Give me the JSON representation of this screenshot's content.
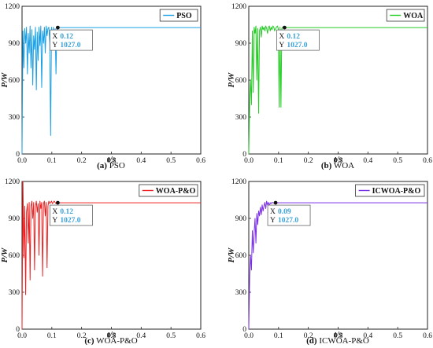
{
  "chart_data": [
    {
      "type": "line",
      "caption": {
        "tag": "(a)",
        "name": "PSO"
      },
      "legend": "PSO",
      "color": "#1aa0e6",
      "xlabel": "t/s",
      "ylabel": "P/W",
      "xlim": [
        0,
        0.6
      ],
      "ylim": [
        0,
        1200
      ],
      "xticks": [
        "0.0",
        "0.1",
        "0.2",
        "0.3",
        "0.4",
        "0.5",
        "0.6"
      ],
      "yticks": [
        "0",
        "300",
        "600",
        "900",
        "1200"
      ],
      "annotation": {
        "x_label": "X",
        "x_value": "0.12",
        "y_label": "Y",
        "y_value": "1027.0"
      },
      "marker": {
        "x": 0.12,
        "y": 1027
      },
      "steady": 1027,
      "series": [
        {
          "x": [
            0,
            0.003,
            0.006,
            0.009,
            0.012,
            0.015,
            0.018,
            0.021,
            0.024,
            0.027,
            0.03,
            0.033,
            0.036,
            0.039,
            0.042,
            0.045,
            0.048,
            0.051,
            0.054,
            0.057,
            0.06,
            0.063,
            0.066,
            0.069,
            0.072,
            0.075,
            0.078,
            0.081,
            0.084,
            0.087,
            0.09,
            0.093,
            0.096,
            0.099,
            0.102,
            0.105,
            0.108,
            0.111,
            0.114,
            0.117,
            0.12,
            0.6
          ],
          "y": [
            0,
            1000,
            700,
            1020,
            900,
            1030,
            650,
            980,
            820,
            1040,
            700,
            1010,
            560,
            960,
            850,
            1030,
            520,
            990,
            760,
            1030,
            880,
            1040,
            540,
            1000,
            900,
            1030,
            820,
            1040,
            960,
            1020,
            1030,
            900,
            150,
            1030,
            950,
            1030,
            860,
            1020,
            650,
            1027,
            1027,
            1027
          ]
        }
      ]
    },
    {
      "type": "line",
      "caption": {
        "tag": "(b)",
        "name": "WOA"
      },
      "legend": "WOA",
      "color": "#22cc22",
      "xlabel": "t/s",
      "ylabel": "P/W",
      "xlim": [
        0,
        0.6
      ],
      "ylim": [
        0,
        1200
      ],
      "xticks": [
        "0.0",
        "0.1",
        "0.2",
        "0.3",
        "0.4",
        "0.5",
        "0.6"
      ],
      "yticks": [
        "0",
        "300",
        "600",
        "900",
        "1200"
      ],
      "annotation": {
        "x_label": "X",
        "x_value": "0.12",
        "y_label": "Y",
        "y_value": "1027.0"
      },
      "marker": {
        "x": 0.12,
        "y": 1027
      },
      "steady": 1027,
      "series": [
        {
          "x": [
            0,
            0.003,
            0.006,
            0.009,
            0.012,
            0.015,
            0.018,
            0.021,
            0.024,
            0.027,
            0.03,
            0.033,
            0.036,
            0.039,
            0.042,
            0.045,
            0.048,
            0.051,
            0.054,
            0.057,
            0.06,
            0.063,
            0.066,
            0.069,
            0.072,
            0.075,
            0.078,
            0.081,
            0.084,
            0.087,
            0.09,
            0.093,
            0.096,
            0.099,
            0.102,
            0.105,
            0.108,
            0.111,
            0.114,
            0.117,
            0.12,
            0.6
          ],
          "y": [
            0,
            420,
            600,
            400,
            1000,
            500,
            1030,
            980,
            1040,
            600,
            1020,
            330,
            1000,
            1030,
            950,
            1040,
            1010,
            1030,
            1000,
            1040,
            1020,
            980,
            1030,
            1040,
            1000,
            1030,
            1010,
            1040,
            1030,
            1000,
            1020,
            1030,
            1040,
            1020,
            380,
            1030,
            380,
            1020,
            1030,
            1027,
            1027,
            1027
          ]
        }
      ]
    },
    {
      "type": "line",
      "caption": {
        "tag": "(c)",
        "name": "WOA-P&O"
      },
      "legend": "WOA-P&O",
      "color": "#ee2222",
      "xlabel": "t/s",
      "ylabel": "P/W",
      "xlim": [
        0,
        0.6
      ],
      "ylim": [
        0,
        1200
      ],
      "xticks": [
        "0.0",
        "0.1",
        "0.2",
        "0.3",
        "0.4",
        "0.5",
        "0.6"
      ],
      "yticks": [
        "0",
        "300",
        "600",
        "900",
        "1200"
      ],
      "annotation": {
        "x_label": "X",
        "x_value": "0.12",
        "y_label": "Y",
        "y_value": "1027.0"
      },
      "marker": {
        "x": 0.12,
        "y": 1027
      },
      "steady": 1027,
      "series": [
        {
          "x": [
            0,
            0.003,
            0.006,
            0.009,
            0.012,
            0.015,
            0.018,
            0.021,
            0.024,
            0.027,
            0.03,
            0.033,
            0.036,
            0.039,
            0.042,
            0.045,
            0.048,
            0.051,
            0.054,
            0.057,
            0.06,
            0.063,
            0.066,
            0.069,
            0.072,
            0.075,
            0.078,
            0.081,
            0.084,
            0.087,
            0.09,
            0.093,
            0.096,
            0.099,
            0.102,
            0.105,
            0.108,
            0.111,
            0.114,
            0.117,
            0.12,
            0.6
          ],
          "y": [
            0,
            1200,
            580,
            1000,
            280,
            950,
            1020,
            700,
            1030,
            400,
            1000,
            1040,
            900,
            1030,
            480,
            1000,
            1040,
            950,
            1020,
            600,
            1040,
            980,
            1030,
            430,
            1020,
            1040,
            920,
            1030,
            500,
            1000,
            1040,
            1020,
            1030,
            1040,
            1020,
            1030,
            1040,
            1030,
            1020,
            1027,
            1027,
            1027
          ]
        }
      ]
    },
    {
      "type": "line",
      "caption": {
        "tag": "(d)",
        "name": "ICWOA-P&O"
      },
      "legend": "ICWOA-P&O",
      "color": "#7a2ee6",
      "xlabel": "t/s",
      "ylabel": "P/W",
      "xlim": [
        0,
        0.6
      ],
      "ylim": [
        0,
        1200
      ],
      "xticks": [
        "0.0",
        "0.1",
        "0.2",
        "0.3",
        "0.4",
        "0.5",
        "0.6"
      ],
      "yticks": [
        "0",
        "300",
        "600",
        "900",
        "1200"
      ],
      "annotation": {
        "x_label": "X",
        "x_value": "0.09",
        "y_label": "Y",
        "y_value": "1027.0"
      },
      "marker": {
        "x": 0.09,
        "y": 1027
      },
      "steady": 1027,
      "series": [
        {
          "x": [
            0,
            0.003,
            0.006,
            0.009,
            0.012,
            0.015,
            0.018,
            0.021,
            0.024,
            0.027,
            0.03,
            0.033,
            0.036,
            0.039,
            0.042,
            0.045,
            0.048,
            0.051,
            0.054,
            0.057,
            0.06,
            0.063,
            0.066,
            0.069,
            0.072,
            0.075,
            0.078,
            0.081,
            0.084,
            0.087,
            0.09,
            0.6
          ],
          "y": [
            0,
            430,
            600,
            480,
            800,
            620,
            780,
            900,
            700,
            940,
            850,
            960,
            920,
            990,
            930,
            1010,
            960,
            1000,
            1030,
            980,
            1040,
            1010,
            1030,
            1000,
            1027,
            1020,
            1030,
            1027,
            1025,
            1027,
            1027,
            1027
          ]
        }
      ]
    }
  ]
}
